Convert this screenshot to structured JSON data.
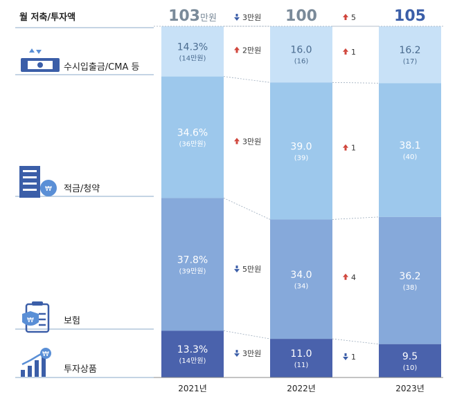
{
  "chart_data": {
    "type": "bar",
    "stacked": true,
    "header": "월 저축/투자액",
    "categories": [
      "2021년",
      "2022년",
      "2023년"
    ],
    "totals": [
      {
        "value": "103",
        "unit": "만원",
        "color": "#7a8a99"
      },
      {
        "value": "100",
        "unit": "",
        "color": "#7a8a99"
      },
      {
        "value": "105",
        "unit": "",
        "color": "#3b5ea8"
      }
    ],
    "total_changes": [
      {
        "dir": "down",
        "text": "3만원"
      },
      {
        "dir": "up",
        "text": "5"
      }
    ],
    "series": [
      {
        "name": "수시입출금/CMA 등",
        "icon": "cash-icon",
        "color": "#c8e1f7",
        "labels": [
          "14.3%",
          "16.0",
          "16.2"
        ],
        "sublabels": [
          "(14만원)",
          "(16)",
          "(17)"
        ],
        "values": [
          14.3,
          16.0,
          16.2
        ],
        "changes": [
          {
            "dir": "up",
            "text": "2만원"
          },
          {
            "dir": "up",
            "text": "1"
          }
        ]
      },
      {
        "name": "적금/청약",
        "icon": "building-money-icon",
        "color": "#9dc8ec",
        "labels": [
          "34.6%",
          "39.0",
          "38.1"
        ],
        "sublabels": [
          "(36만원)",
          "(39)",
          "(40)"
        ],
        "values": [
          34.6,
          39.0,
          38.1
        ],
        "changes": [
          {
            "dir": "up",
            "text": "3만원"
          },
          {
            "dir": "up",
            "text": "1"
          }
        ]
      },
      {
        "name": "보험",
        "icon": "insurance-clipboard-icon",
        "color": "#86a9da",
        "labels": [
          "37.8%",
          "34.0",
          "36.2"
        ],
        "sublabels": [
          "(39만원)",
          "(34)",
          "(38)"
        ],
        "values": [
          37.8,
          34.0,
          36.2
        ],
        "changes": [
          {
            "dir": "down",
            "text": "5만원"
          },
          {
            "dir": "up",
            "text": "4"
          }
        ]
      },
      {
        "name": "투자상품",
        "icon": "growth-chart-icon",
        "color": "#4a62ac",
        "labels": [
          "13.3%",
          "11.0",
          "9.5"
        ],
        "sublabels": [
          "(14만원)",
          "(11)",
          "(10)"
        ],
        "values": [
          13.3,
          11.0,
          9.5
        ],
        "changes": [
          {
            "dir": "down",
            "text": "3만원"
          },
          {
            "dir": "down",
            "text": "1"
          }
        ]
      }
    ],
    "ylim": [
      0,
      100
    ],
    "grid": false,
    "legend": "left"
  }
}
